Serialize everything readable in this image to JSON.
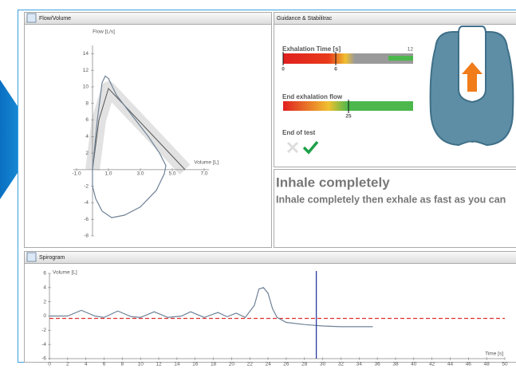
{
  "flow_volume": {
    "title": "Flow/Volume",
    "y_label": "Flow [L/s]",
    "x_label": "Volume [L]",
    "xlim": [
      -1.2,
      7.3
    ],
    "ylim": [
      -8,
      15
    ],
    "xticks": [
      {
        "value": -1,
        "label": "-1.0"
      },
      {
        "value": 1,
        "label": "1.0"
      },
      {
        "value": 3,
        "label": "3.0"
      },
      {
        "value": 5,
        "label": "5.0"
      },
      {
        "value": 7,
        "label": "7.0"
      }
    ],
    "yticks": [
      -8,
      -6,
      -4,
      -2,
      2,
      4,
      6,
      8,
      10,
      12,
      14
    ],
    "measured": {
      "x": [
        0,
        0.3,
        0.6,
        0.8,
        1.0,
        1.5,
        2.5,
        3.5,
        4.2,
        4.6,
        4.5,
        4.0,
        3.0,
        2.0,
        1.2,
        0.6,
        0.2,
        0,
        0
      ],
      "y": [
        0,
        6,
        10.5,
        11.3,
        11,
        9,
        6.5,
        4,
        2,
        0.5,
        -0.5,
        -2.5,
        -4.5,
        -5.5,
        -5.8,
        -5,
        -3.5,
        -2,
        0
      ]
    },
    "predicted": {
      "x": [
        0,
        0.4,
        1.0,
        5.8
      ],
      "y": [
        0,
        6,
        9.8,
        0
      ]
    }
  },
  "guidance": {
    "title": "Guidance & Stabilitrac",
    "exhalation_time": {
      "label": "Exhalation Time [s]",
      "max": 12,
      "ticks": [
        0,
        6
      ]
    },
    "end_flow": {
      "label": "End exhalation flow",
      "value": 25
    },
    "end_of_test": "End of test"
  },
  "message": {
    "title": "Inhale completely",
    "text": "Inhale completely then exhale as fast as you can"
  },
  "spirogram": {
    "title": "Spirogram",
    "y_label": "Volume [L]",
    "x_label": "Time [s]",
    "xlim": [
      0,
      50
    ],
    "ylim": [
      -6,
      6
    ],
    "xticks": [
      0,
      2,
      4,
      6,
      8,
      10,
      12,
      14,
      16,
      18,
      20,
      22,
      24,
      26,
      28,
      30,
      32,
      34,
      36,
      38,
      40,
      42,
      44,
      46,
      48,
      50
    ],
    "yticks": [
      -6,
      -4,
      -2,
      0,
      2,
      4,
      6
    ],
    "curve": {
      "x": [
        0,
        2,
        3.5,
        5,
        6,
        7.5,
        9,
        10,
        11.5,
        13,
        14.5,
        15.5,
        17,
        18.5,
        19.5,
        20.5,
        21.5,
        22.5,
        23,
        23.5,
        24,
        24.5,
        25,
        26,
        28,
        30,
        32,
        35.5
      ],
      "y": [
        0,
        0,
        0.8,
        0,
        -0.2,
        0.7,
        -0.1,
        -0.2,
        0.6,
        -0.2,
        0,
        0.6,
        -0.2,
        0.5,
        -0.1,
        0.4,
        -0.2,
        1.5,
        3.8,
        4.0,
        3.2,
        1.0,
        -0.2,
        -0.9,
        -1.2,
        -1.4,
        -1.5,
        -1.5
      ]
    },
    "baseline": 0,
    "cursor": 29.3
  }
}
